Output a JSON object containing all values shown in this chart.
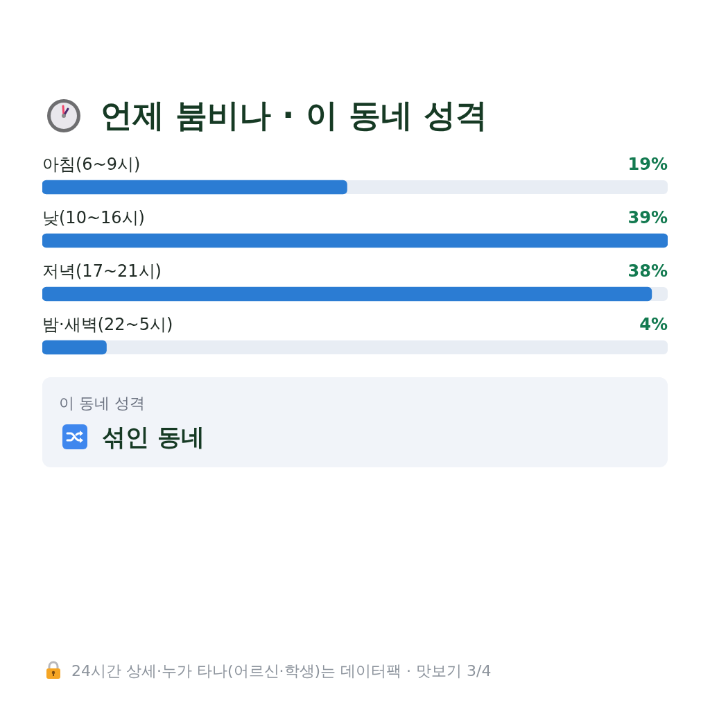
{
  "chart_data": {
    "type": "bar",
    "orientation": "horizontal",
    "title": "언제 붐비나 · 이 동네 성격",
    "categories": [
      "아침(6~9시)",
      "낮(10~16시)",
      "저녁(17~21시)",
      "밤·새벽(22~5시)"
    ],
    "values": [
      19,
      39,
      38,
      4
    ],
    "value_labels": [
      "19%",
      "39%",
      "38%",
      "4%"
    ],
    "color": "#2b7cd3",
    "xlim": [
      0,
      39
    ],
    "tick_labels": "y",
    "annotations": [
      "이 동네 성격",
      "섞인 동네",
      "24시간 상세·누가 타나(어르신·학생)는 데이터팩 · 맛보기 3/4"
    ]
  }
}
